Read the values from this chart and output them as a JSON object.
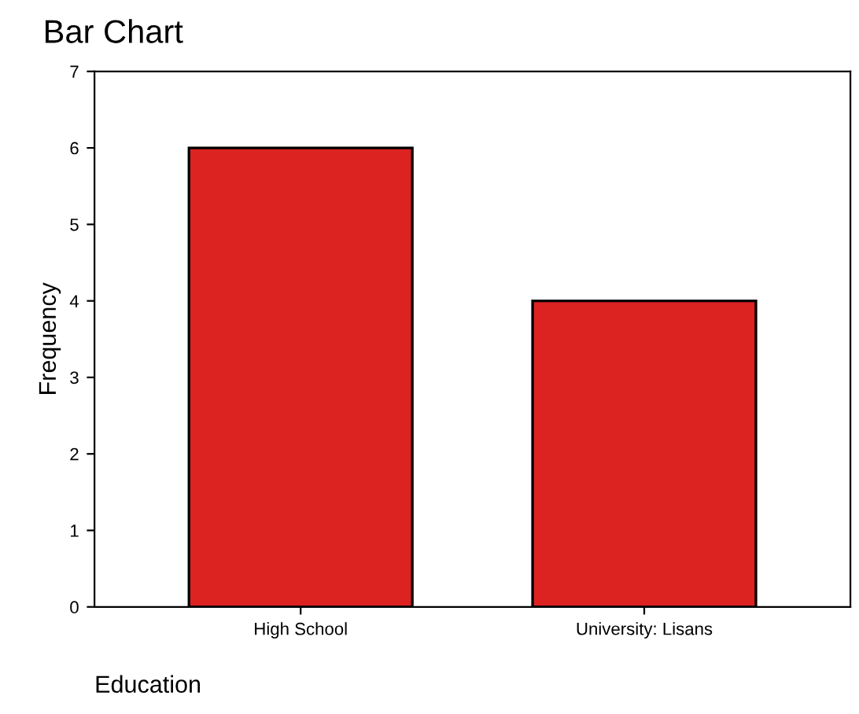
{
  "chart_data": {
    "type": "bar",
    "title": "Bar Chart",
    "xlabel": "Education",
    "ylabel": "Frequency",
    "categories": [
      "High School",
      "University: Lisans"
    ],
    "values": [
      6,
      4
    ],
    "color": "#dd2222",
    "ylim": [
      0,
      7
    ],
    "yticks": [
      0,
      1,
      2,
      3,
      4,
      5,
      6,
      7
    ],
    "grid": false,
    "legend": false
  }
}
